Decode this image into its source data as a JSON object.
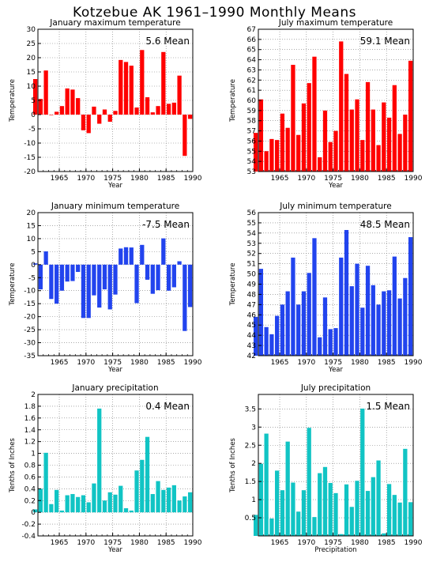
{
  "title": "Kotzebue AK   1961–1990 Monthly Means",
  "chart_data": [
    {
      "type": "bar",
      "title": "January maximum temperature",
      "xlabel": "Year",
      "ylabel": "Temperature",
      "mean_label": "5.6 Mean",
      "color": "#ff0000",
      "xlim": [
        1961,
        1990
      ],
      "xticks": [
        1965,
        1970,
        1975,
        1980,
        1985,
        1990
      ],
      "ylim": [
        -20,
        30
      ],
      "yticks": [
        -20,
        -15,
        -10,
        -5,
        0,
        5,
        10,
        15,
        20,
        25,
        30
      ],
      "x": [
        1961,
        1962,
        1963,
        1964,
        1965,
        1966,
        1967,
        1968,
        1969,
        1970,
        1971,
        1972,
        1973,
        1974,
        1975,
        1976,
        1977,
        1978,
        1979,
        1980,
        1981,
        1982,
        1983,
        1984,
        1985,
        1986,
        1987,
        1988,
        1989,
        1990
      ],
      "values": [
        12.5,
        5.5,
        15.5,
        0,
        1,
        3,
        9.2,
        8.8,
        5.8,
        -5.5,
        -6.5,
        2.8,
        -3.2,
        1.8,
        -2.5,
        1.3,
        19.2,
        18.5,
        17.2,
        2.5,
        22.7,
        6.1,
        0.8,
        3,
        22,
        3.8,
        4.2,
        13.7,
        -14.5,
        -1.5
      ]
    },
    {
      "type": "bar",
      "title": "July maximum temperature",
      "xlabel": "Year",
      "ylabel": "Temperature",
      "mean_label": "59.1 Mean",
      "color": "#ff0000",
      "xlim": [
        1961,
        1990
      ],
      "xticks": [
        1965,
        1970,
        1975,
        1980,
        1985,
        1990
      ],
      "ylim": [
        53,
        67
      ],
      "yticks": [
        53,
        54,
        55,
        56,
        57,
        58,
        59,
        60,
        61,
        62,
        63,
        64,
        65,
        66,
        67
      ],
      "x": [
        1961,
        1962,
        1963,
        1964,
        1965,
        1966,
        1967,
        1968,
        1969,
        1970,
        1971,
        1972,
        1973,
        1974,
        1975,
        1976,
        1977,
        1978,
        1979,
        1980,
        1981,
        1982,
        1983,
        1984,
        1985,
        1986,
        1987,
        1988,
        1989,
        1990
      ],
      "values": [
        56.8,
        60.1,
        55,
        56.2,
        56.1,
        58.7,
        57.3,
        63.5,
        56.6,
        59.7,
        61.7,
        64.3,
        54.4,
        59,
        55.9,
        57,
        65.8,
        62.6,
        59.1,
        60.1,
        56.1,
        61.8,
        59.1,
        55.6,
        59.8,
        58.3,
        61.5,
        56.7,
        58.6,
        63.9
      ]
    },
    {
      "type": "bar",
      "title": "January minimum temperature",
      "xlabel": "Year",
      "ylabel": "Temperature",
      "mean_label": "-7.5 Mean",
      "color": "#2244ee",
      "xlim": [
        1961,
        1990
      ],
      "xticks": [
        1965,
        1970,
        1975,
        1980,
        1985,
        1990
      ],
      "ylim": [
        -35,
        20
      ],
      "yticks": [
        -35,
        -30,
        -25,
        -20,
        -15,
        -10,
        -5,
        0,
        5,
        10,
        15,
        20
      ],
      "x": [
        1961,
        1962,
        1963,
        1964,
        1965,
        1966,
        1967,
        1968,
        1969,
        1970,
        1971,
        1972,
        1973,
        1974,
        1975,
        1976,
        1977,
        1978,
        1979,
        1980,
        1981,
        1982,
        1983,
        1984,
        1985,
        1986,
        1987,
        1988,
        1989,
        1990
      ],
      "values": [
        0.5,
        -9.5,
        5.1,
        -13.2,
        -15,
        -10,
        -6.5,
        -6.3,
        -2.8,
        -20.5,
        -20.5,
        -11.8,
        -16.5,
        -9.5,
        -17.2,
        -11.5,
        6.2,
        6.7,
        6.6,
        -14.8,
        7.6,
        -5.8,
        -11.2,
        -9.8,
        10.1,
        -10,
        -8.7,
        1.3,
        -25.5,
        -16.3
      ]
    },
    {
      "type": "bar",
      "title": "July minimum temperature",
      "xlabel": "Year",
      "ylabel": "Temperature",
      "mean_label": "48.5 Mean",
      "color": "#2244ee",
      "xlim": [
        1961,
        1990
      ],
      "xticks": [
        1965,
        1970,
        1975,
        1980,
        1985,
        1990
      ],
      "ylim": [
        42,
        56
      ],
      "yticks": [
        42,
        43,
        44,
        45,
        46,
        47,
        48,
        49,
        50,
        51,
        52,
        53,
        54,
        55,
        56
      ],
      "x": [
        1961,
        1962,
        1963,
        1964,
        1965,
        1966,
        1967,
        1968,
        1969,
        1970,
        1971,
        1972,
        1973,
        1974,
        1975,
        1976,
        1977,
        1978,
        1979,
        1980,
        1981,
        1982,
        1983,
        1984,
        1985,
        1986,
        1987,
        1988,
        1989,
        1990
      ],
      "values": [
        45.8,
        50.5,
        44.8,
        44.1,
        45.9,
        47,
        48.3,
        51.6,
        47,
        48.3,
        50.1,
        53.5,
        43.8,
        47.7,
        44.6,
        44.7,
        51.6,
        54.3,
        48.8,
        51,
        46.7,
        50.8,
        48.9,
        47,
        48.3,
        48.4,
        51.7,
        47.6,
        49.6,
        53.6
      ]
    },
    {
      "type": "bar",
      "title": "January precipitation",
      "xlabel": "Year",
      "ylabel": "Tenths of Inches",
      "mean_label": "0.4 Mean",
      "color": "#11c4c4",
      "xlim": [
        1961,
        1990
      ],
      "xticks": [
        1965,
        1970,
        1975,
        1980,
        1985,
        1990
      ],
      "ylim": [
        -0.4,
        2
      ],
      "yticks": [
        -0.4,
        -0.2,
        0,
        0.2,
        0.4,
        0.6,
        0.8,
        1,
        1.2,
        1.4,
        1.6,
        1.8,
        2
      ],
      "x": [
        1961,
        1962,
        1963,
        1964,
        1965,
        1966,
        1967,
        1968,
        1969,
        1970,
        1971,
        1972,
        1973,
        1974,
        1975,
        1976,
        1977,
        1978,
        1979,
        1980,
        1981,
        1982,
        1983,
        1984,
        1985,
        1986,
        1987,
        1988,
        1989,
        1990
      ],
      "values": [
        0.05,
        0.4,
        1.01,
        0.14,
        0.38,
        0.03,
        0.29,
        0.31,
        0.26,
        0.29,
        0.17,
        0.49,
        1.76,
        0.2,
        0.34,
        0.3,
        0.45,
        0.07,
        0.03,
        0.71,
        0.89,
        1.28,
        0.31,
        0.53,
        0.38,
        0.42,
        0.46,
        0.2,
        0.27,
        0.34
      ]
    },
    {
      "type": "bar",
      "title": "July precipitation",
      "xlabel": "Precipitation",
      "ylabel": "Tenths of Inches",
      "mean_label": "1.5 Mean",
      "color": "#11c4c4",
      "xlim": [
        1961,
        1990
      ],
      "xticks": [
        1965,
        1970,
        1975,
        1980,
        1985,
        1990
      ],
      "ylim": [
        0,
        3.9
      ],
      "yticks": [
        0.5,
        1,
        1.5,
        2,
        2.5,
        3,
        3.5
      ],
      "x": [
        1961,
        1962,
        1963,
        1964,
        1965,
        1966,
        1967,
        1968,
        1969,
        1970,
        1971,
        1972,
        1973,
        1974,
        1975,
        1976,
        1977,
        1978,
        1979,
        1980,
        1981,
        1982,
        1983,
        1984,
        1985,
        1986,
        1987,
        1988,
        1989,
        1990
      ],
      "values": [
        0.58,
        1.99,
        2.82,
        0.48,
        1.8,
        1.26,
        2.6,
        1.47,
        0.67,
        1.26,
        2.98,
        0.52,
        1.73,
        1.9,
        1.46,
        1.18,
        0.05,
        1.42,
        0.8,
        1.52,
        3.51,
        1.24,
        1.62,
        2.08,
        0.07,
        1.43,
        1.13,
        0.92,
        2.4,
        0.93
      ]
    }
  ]
}
